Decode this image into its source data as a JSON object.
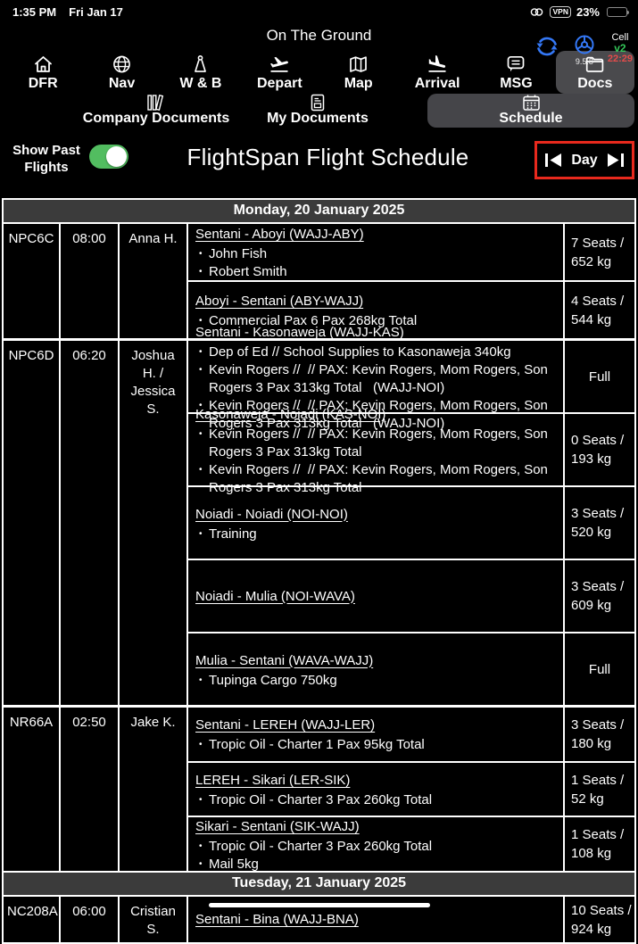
{
  "status_bar": {
    "time": "1:35 PM",
    "date": "Fri Jan 17",
    "battery": "23%",
    "vpn_label": "VPN"
  },
  "header": {
    "title": "On The Ground",
    "app_build": "9.5.8",
    "network": "Cell",
    "data_version": "v2",
    "sync_time": "22:29"
  },
  "colors": {
    "accent_blue": "#3478f6",
    "toggle_green": "#52bd60",
    "version_green": "#34c759",
    "sync_red": "#e24c4b",
    "day_nav_border_red": "#e8291d",
    "day_header_bg": "#3b3b3b",
    "active_tab_bg": "#4a4a4d"
  },
  "main_tabs": [
    {
      "label": "DFR",
      "icon": "home-icon",
      "active": false
    },
    {
      "label": "Nav",
      "icon": "globe-icon",
      "active": false
    },
    {
      "label": "W & B",
      "icon": "weight-icon",
      "active": false
    },
    {
      "label": "Depart",
      "icon": "takeoff-icon",
      "active": false
    },
    {
      "label": "Map",
      "icon": "map-icon",
      "active": false
    },
    {
      "label": "Arrival",
      "icon": "landing-icon",
      "active": false
    },
    {
      "label": "MSG",
      "icon": "message-icon",
      "active": false
    },
    {
      "label": "Docs",
      "icon": "folder-icon",
      "active": true
    }
  ],
  "doc_tabs": [
    {
      "label": "Company Documents",
      "icon": "books-icon",
      "active": false
    },
    {
      "label": "My Documents",
      "icon": "document-icon",
      "active": false
    },
    {
      "label": "Schedule",
      "icon": "calendar-icon",
      "active": true
    }
  ],
  "schedule_bar": {
    "toggle_label": "Show Past Flights",
    "toggle_on": true,
    "title": "FlightSpan Flight Schedule",
    "day_nav_label": "Day"
  },
  "schedule": {
    "days": [
      {
        "date_label": "Monday, 20 January 2025",
        "flights": [
          {
            "code": "NPC6C",
            "time": "08:00",
            "pilot": "Anna H.",
            "legs": [
              {
                "route": "Sentani - Aboyi (WAJJ-ABY)",
                "items": [
                  "John Fish",
                  "Robert Smith"
                ],
                "seats": "7 Seats / 652 kg"
              },
              {
                "route": "Aboyi - Sentani (ABY-WAJJ)",
                "items": [
                  "Commercial Pax 6 Pax 268kg Total"
                ],
                "seats": "4 Seats / 544 kg"
              }
            ]
          },
          {
            "code": "NPC6D",
            "time": "06:20",
            "pilot": "Joshua H. / Jessica S.",
            "legs": [
              {
                "route": "Sentani - Kasonaweja (WAJJ-KAS)",
                "items": [
                  "Dep of Ed // School Supplies to Kasonaweja 340kg",
                  "Kevin Rogers //  // PAX: Kevin Rogers, Mom Rogers, Son Rogers 3 Pax 313kg Total   (WAJJ-NOI)",
                  "Kevin Rogers //  // PAX: Kevin Rogers, Mom Rogers, Son Rogers 3 Pax 313kg Total   (WAJJ-NOI)"
                ],
                "seats": "Full"
              },
              {
                "route": "Kasonaweja - Noiadi (KAS-NOI)",
                "items": [
                  "Kevin Rogers //  // PAX: Kevin Rogers, Mom Rogers, Son Rogers 3 Pax 313kg Total",
                  "Kevin Rogers //  // PAX: Kevin Rogers, Mom Rogers, Son Rogers 3 Pax 313kg Total"
                ],
                "seats": "0 Seats / 193 kg"
              },
              {
                "route": "Noiadi - Noiadi (NOI-NOI)",
                "items": [
                  "Training"
                ],
                "seats": "3 Seats / 520 kg"
              },
              {
                "route": "Noiadi - Mulia (NOI-WAVA)",
                "items": [],
                "seats": "3 Seats / 609 kg"
              },
              {
                "route": "Mulia - Sentani (WAVA-WAJJ)",
                "items": [
                  "Tupinga Cargo 750kg"
                ],
                "seats": "Full"
              }
            ]
          },
          {
            "code": "NR66A",
            "time": "02:50",
            "pilot": "Jake K.",
            "legs": [
              {
                "route": "Sentani - LEREH (WAJJ-LER)",
                "items": [
                  "Tropic Oil - Charter 1 Pax 95kg Total"
                ],
                "seats": "3 Seats / 180 kg"
              },
              {
                "route": "LEREH - Sikari (LER-SIK)",
                "items": [
                  "Tropic Oil - Charter 3 Pax 260kg Total"
                ],
                "seats": "1 Seats / 52 kg"
              },
              {
                "route": "Sikari - Sentani (SIK-WAJJ)",
                "items": [
                  "Tropic Oil - Charter 3 Pax 260kg Total",
                  "Mail 5kg"
                ],
                "seats": "1 Seats / 108 kg"
              }
            ]
          }
        ]
      },
      {
        "date_label": "Tuesday, 21 January 2025",
        "flights": [
          {
            "code": "NC208A",
            "time": "06:00",
            "pilot": "Cristian S.",
            "legs": [
              {
                "route": "Sentani - Bina (WAJJ-BNA)",
                "items": [],
                "seats": "10 Seats / 924 kg"
              }
            ]
          }
        ]
      }
    ]
  }
}
